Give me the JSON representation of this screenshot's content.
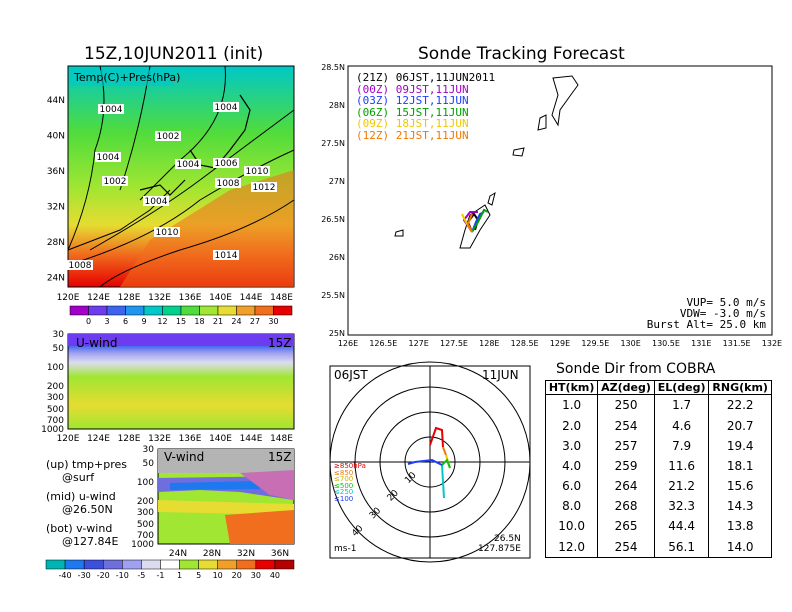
{
  "left_title": "15Z,10JUN2011 (init)",
  "map_panel": {
    "label": "Temp(C)+Pres(hPa)",
    "lat_ticks": [
      "44N",
      "40N",
      "36N",
      "32N",
      "28N",
      "24N"
    ],
    "lon_ticks": [
      "120E",
      "124E",
      "128E",
      "132E",
      "136E",
      "140E",
      "144E",
      "148E"
    ],
    "isobar_labels": [
      "1004",
      "1004",
      "1002",
      "1004",
      "1004",
      "1006",
      "1010",
      "1002",
      "1008",
      "1012",
      "1004",
      "1010",
      "1014",
      "1008"
    ]
  },
  "temp_colorbar": {
    "labels": [
      "0",
      "3",
      "6",
      "9",
      "12",
      "15",
      "18",
      "21",
      "24",
      "27",
      "30"
    ],
    "colors": [
      "#a000c8",
      "#6e3cf0",
      "#3c64f0",
      "#1e96f0",
      "#00c8c8",
      "#00d28c",
      "#50dc3c",
      "#a0e632",
      "#e6dc32",
      "#f0a028",
      "#f06e1e",
      "#e60000"
    ]
  },
  "uwind_panel": {
    "label": "U-wind",
    "time": "15Z",
    "p_ticks": [
      "30",
      "50",
      "100",
      "200",
      "300",
      "500",
      "700",
      "1000"
    ],
    "lon_ticks": [
      "120E",
      "124E",
      "128E",
      "132E",
      "136E",
      "140E",
      "144E",
      "148E"
    ]
  },
  "vwind_panel": {
    "label": "V-wind",
    "time": "15Z",
    "p_ticks": [
      "30",
      "50",
      "100",
      "200",
      "300",
      "500",
      "700",
      "1000"
    ],
    "lat_ticks": [
      "24N",
      "28N",
      "32N",
      "36N"
    ]
  },
  "notes": [
    {
      "line1": "(up) tmp+pres",
      "line2": "@surf"
    },
    {
      "line1": "(mid) u-wind",
      "line2": "@26.50N"
    },
    {
      "line1": "(bot) v-wind",
      "line2": "@127.84E"
    }
  ],
  "wind_colorbar": {
    "labels": [
      "-40",
      "-30",
      "-20",
      "-10",
      "-5",
      "-1",
      "1",
      "5",
      "10",
      "20",
      "30",
      "40"
    ],
    "colors": [
      "#00b4b4",
      "#1e78f0",
      "#3c50dc",
      "#6e6edc",
      "#a0a0f0",
      "#dcdcf0",
      "#ffffff",
      "#a0e632",
      "#e6dc32",
      "#f0a028",
      "#f06e1e",
      "#e60000",
      "#b40000"
    ]
  },
  "right_title": "Sonde Tracking Forecast",
  "track_map": {
    "lat_ticks": [
      "28.5N",
      "28N",
      "27.5N",
      "27N",
      "26.5N",
      "26N",
      "25.5N",
      "25N"
    ],
    "lon_ticks": [
      "126E",
      "126.5E",
      "127E",
      "127.5E",
      "128E",
      "128.5E",
      "129E",
      "129.5E",
      "130E",
      "130.5E",
      "131E",
      "131.5E",
      "132E"
    ],
    "legend": [
      {
        "text": "(21Z) 06JST,11JUN2011",
        "color": "#000000"
      },
      {
        "text": "(00Z) 09JST,11JUN",
        "color": "#a000c8"
      },
      {
        "text": "(03Z) 12JST,11JUN",
        "color": "#1e3cff"
      },
      {
        "text": "(06Z) 15JST,11JUN",
        "color": "#00a000"
      },
      {
        "text": "(09Z) 18JST,11JUN",
        "color": "#f0c800"
      },
      {
        "text": "(12Z) 21JST,11JUN",
        "color": "#f07800"
      }
    ],
    "params": [
      {
        "text": "VUP= 5.0 m/s"
      },
      {
        "text": "VDW= -3.0 m/s"
      },
      {
        "text": "Burst Alt= 25.0 km"
      }
    ]
  },
  "hodograph": {
    "time_label": "06JST",
    "date_label": "11JUN",
    "ring_labels": [
      "10",
      "20",
      "30",
      "40"
    ],
    "levels": [
      {
        "text": "≥850hPa",
        "color": "#e60000"
      },
      {
        "text": "≤850",
        "color": "#f07800"
      },
      {
        "text": "≤700",
        "color": "#f0c800"
      },
      {
        "text": "≤500",
        "color": "#00c800"
      },
      {
        "text": "≤250",
        "color": "#00c8c8"
      },
      {
        "text": "≤100",
        "color": "#1e3cff"
      }
    ],
    "unit": "ms-1",
    "lat": "26.5N",
    "lon": "127.875E"
  },
  "sonde_dir": {
    "title": "Sonde Dir from COBRA",
    "headers": [
      "HT(km)",
      "AZ(deg)",
      "EL(deg)",
      "RNG(km)"
    ],
    "rows": [
      [
        "1.0",
        "250",
        "1.7",
        "22.2"
      ],
      [
        "2.0",
        "254",
        "4.6",
        "20.7"
      ],
      [
        "3.0",
        "257",
        "7.9",
        "19.4"
      ],
      [
        "4.0",
        "259",
        "11.6",
        "18.1"
      ],
      [
        "6.0",
        "264",
        "21.2",
        "15.6"
      ],
      [
        "8.0",
        "268",
        "32.3",
        "14.3"
      ],
      [
        "10.0",
        "265",
        "44.4",
        "13.8"
      ],
      [
        "12.0",
        "254",
        "56.1",
        "14.0"
      ]
    ]
  }
}
